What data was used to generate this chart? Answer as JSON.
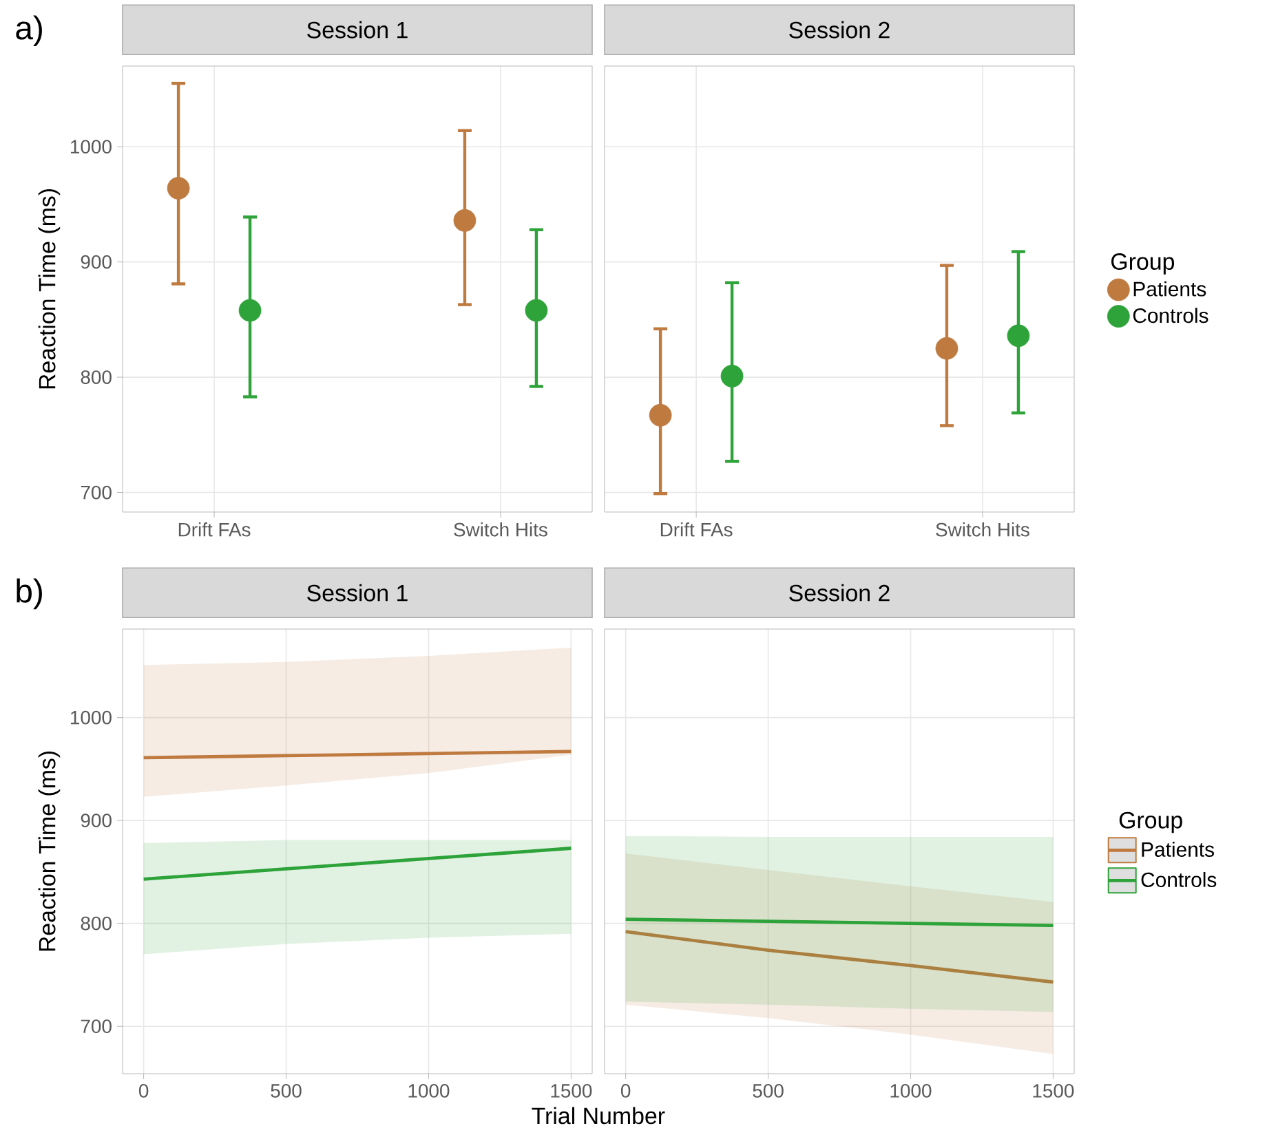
{
  "chart_data": [
    {
      "type": "scatter",
      "title": "Session 1",
      "ylabel": "Reaction Time (ms)",
      "annotations": [
        "a)"
      ],
      "categories": [
        "Drift FAs",
        "Switch Hits"
      ],
      "ylim": [
        683,
        1070
      ],
      "yticks": [
        700,
        800,
        900,
        1000
      ],
      "grid": true,
      "marker": "circle",
      "series": [
        {
          "color": "#bf7a40",
          "values": [
            964,
            936
          ],
          "errors": [
            [
              881,
              1055
            ],
            [
              863,
              1014
            ]
          ]
        },
        {
          "color": "#2ea33a",
          "values": [
            858,
            858
          ],
          "errors": [
            [
              783,
              939
            ],
            [
              792,
              928
            ]
          ]
        }
      ]
    },
    {
      "type": "scatter",
      "title": "Session 2",
      "categories": [
        "Drift FAs",
        "Switch Hits"
      ],
      "ylim": [
        683,
        1070
      ],
      "yticks": [
        700,
        800,
        900,
        1000
      ],
      "grid": true,
      "marker": "circle",
      "tick_labels": "x",
      "legend": "right",
      "legend_title": "Group",
      "series": [
        {
          "name": "Patients",
          "color": "#bf7a40",
          "values": [
            767,
            825
          ],
          "errors": [
            [
              699,
              842
            ],
            [
              758,
              897
            ]
          ]
        },
        {
          "name": "Controls",
          "color": "#2ea33a",
          "values": [
            801,
            836
          ],
          "errors": [
            [
              727,
              882
            ],
            [
              769,
              909
            ]
          ]
        }
      ]
    },
    {
      "type": "line",
      "title": "Session 1",
      "ylabel": "Reaction Time (ms)",
      "xlabel": "Trial Number",
      "annotations": [
        "b)"
      ],
      "xlim": [
        -74,
        1574
      ],
      "xticks": [
        0,
        500,
        1000,
        1500
      ],
      "ylim": [
        654,
        1086
      ],
      "yticks": [
        700,
        800,
        900,
        1000
      ],
      "grid": true,
      "series": [
        {
          "color": "#bf7a40",
          "x": [
            0,
            500,
            1000,
            1500
          ],
          "values": [
            961,
            963,
            965,
            967
          ],
          "lower": [
            923,
            934,
            946,
            964
          ],
          "upper": [
            1051,
            1054,
            1060,
            1068
          ]
        },
        {
          "color": "#2ea33a",
          "x": [
            0,
            500,
            1000,
            1500
          ],
          "values": [
            843,
            853,
            863,
            873
          ],
          "lower": [
            770,
            780,
            786,
            790
          ],
          "upper": [
            878,
            881,
            881,
            881
          ]
        }
      ]
    },
    {
      "type": "line",
      "title": "Session 2",
      "xlim": [
        -74,
        1574
      ],
      "xticks": [
        0,
        500,
        1000,
        1500
      ],
      "ylim": [
        654,
        1086
      ],
      "yticks": [
        700,
        800,
        900,
        1000
      ],
      "grid": true,
      "tick_labels": "x",
      "legend": "right",
      "legend_title": "Group",
      "series": [
        {
          "name": "Patients",
          "color": "#bf7a40",
          "x": [
            0,
            500,
            1000,
            1500
          ],
          "values": [
            792,
            774,
            759,
            743
          ],
          "lower": [
            721,
            708,
            692,
            673
          ],
          "upper": [
            868,
            852,
            836,
            821
          ]
        },
        {
          "name": "Controls",
          "color": "#2ea33a",
          "x": [
            0,
            500,
            1000,
            1500
          ],
          "values": [
            804,
            802,
            800,
            798
          ],
          "lower": [
            724,
            721,
            717,
            714
          ],
          "upper": [
            885,
            884,
            884,
            884
          ]
        }
      ]
    }
  ]
}
